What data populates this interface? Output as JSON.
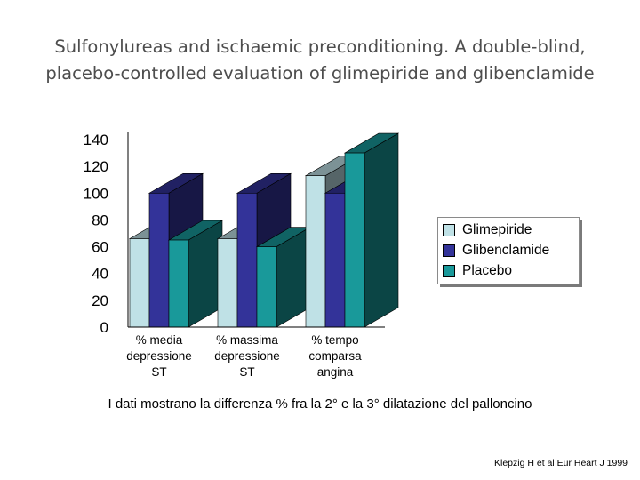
{
  "slide": {
    "title_line1": "Sulfonylureas and ischaemic preconditioning. A double-blind,",
    "title_line2": "placebo-controlled evaluation of glimepiride and glibenclamide",
    "caption": "I dati mostrano la differenza % fra la 2° e la 3° dilatazione del palloncino",
    "citation": "Klepzig H et al Eur Heart J 1999"
  },
  "chart_data": {
    "type": "bar",
    "categories": [
      [
        "% media",
        "depressione",
        "ST"
      ],
      [
        "% massima",
        "depressione",
        "ST"
      ],
      [
        "% tempo",
        "comparsa",
        "angina"
      ]
    ],
    "series": [
      {
        "name": "Glimepiride",
        "values": [
          66,
          66,
          113
        ],
        "color": "#bfe1e6"
      },
      {
        "name": "Glibenclamide",
        "values": [
          100,
          100,
          100
        ],
        "color": "#333399"
      },
      {
        "name": "Placebo",
        "values": [
          65,
          60,
          130
        ],
        "color": "#19999a"
      }
    ],
    "ylim": [
      0,
      140
    ],
    "yticks": [
      "0",
      "20",
      "40",
      "60",
      "80",
      "100",
      "120",
      "140"
    ],
    "style": "3d-clustered",
    "legend_position": "right",
    "grid": false
  }
}
